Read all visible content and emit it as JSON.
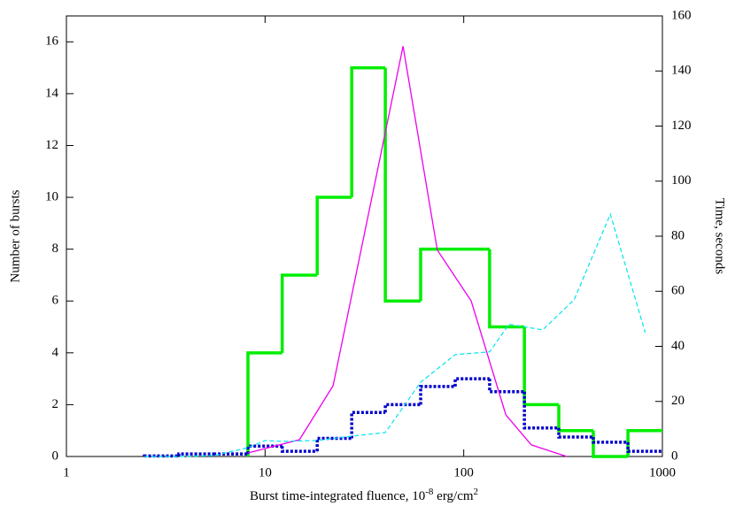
{
  "chart_data": {
    "type": "combo",
    "x_label_parts": [
      "Burst time-integrated fluence, 10",
      "-8",
      " erg/cm",
      "2"
    ],
    "y_label": "Number of bursts",
    "y2_label": "Time, seconds",
    "xscale": "log",
    "xlim": [
      1,
      1000
    ],
    "xticks": [
      1,
      10,
      100,
      1000
    ],
    "ylim": [
      0,
      17
    ],
    "yticks": [
      0,
      2,
      4,
      6,
      8,
      10,
      12,
      14,
      16
    ],
    "y2lim": [
      0,
      160
    ],
    "y2ticks": [
      0,
      20,
      40,
      60,
      80,
      100,
      120,
      140,
      160
    ],
    "series": [
      {
        "type": "histogram",
        "color": "#00ee00",
        "style": "solid",
        "width": 3.5,
        "bins": [
          8.2,
          12.2,
          18.3,
          27.3,
          40.3,
          60.7,
          90.6,
          135,
          202,
          301,
          449,
          671,
          1000
        ],
        "values": [
          4,
          7,
          10,
          15,
          6,
          8,
          8,
          5,
          2,
          1,
          0,
          1
        ]
      },
      {
        "type": "histogram",
        "color": "#0000cc",
        "style": "dotted",
        "width": 3.5,
        "bins": [
          2.47,
          3.68,
          5.5,
          8.2,
          12.2,
          18.3,
          27.3,
          40.3,
          60.7,
          90.6,
          135,
          202,
          301,
          449,
          671,
          1000
        ],
        "values": [
          0.02,
          0.1,
          0.1,
          0.4,
          0.2,
          0.7,
          1.7,
          2.0,
          2.7,
          3.0,
          2.5,
          1.1,
          0.75,
          0.55,
          0.2
        ]
      },
      {
        "type": "line",
        "axis": "y2",
        "color": "#ee00ee",
        "style": "solid",
        "width": 1.3,
        "x": [
          8.2,
          14.9,
          22.0,
          49.5,
          73.6,
          109,
          163,
          219,
          330
        ],
        "values": [
          1.3,
          6.1,
          25.7,
          149,
          75,
          56.5,
          15.1,
          4.2,
          0
        ]
      },
      {
        "type": "line",
        "axis": "y2",
        "color": "#00e5ee",
        "style": "dashed",
        "width": 1.2,
        "x": [
          2.47,
          3.68,
          5.5,
          8.2,
          10,
          12.2,
          18.3,
          27.3,
          40.3,
          60.7,
          90.6,
          135,
          169,
          250,
          360,
          547,
          820
        ],
        "values": [
          0,
          0,
          0.3,
          3.2,
          5.8,
          5.5,
          5.8,
          7.4,
          8.7,
          27,
          37,
          38,
          48,
          46,
          57,
          88,
          45
        ]
      }
    ]
  }
}
